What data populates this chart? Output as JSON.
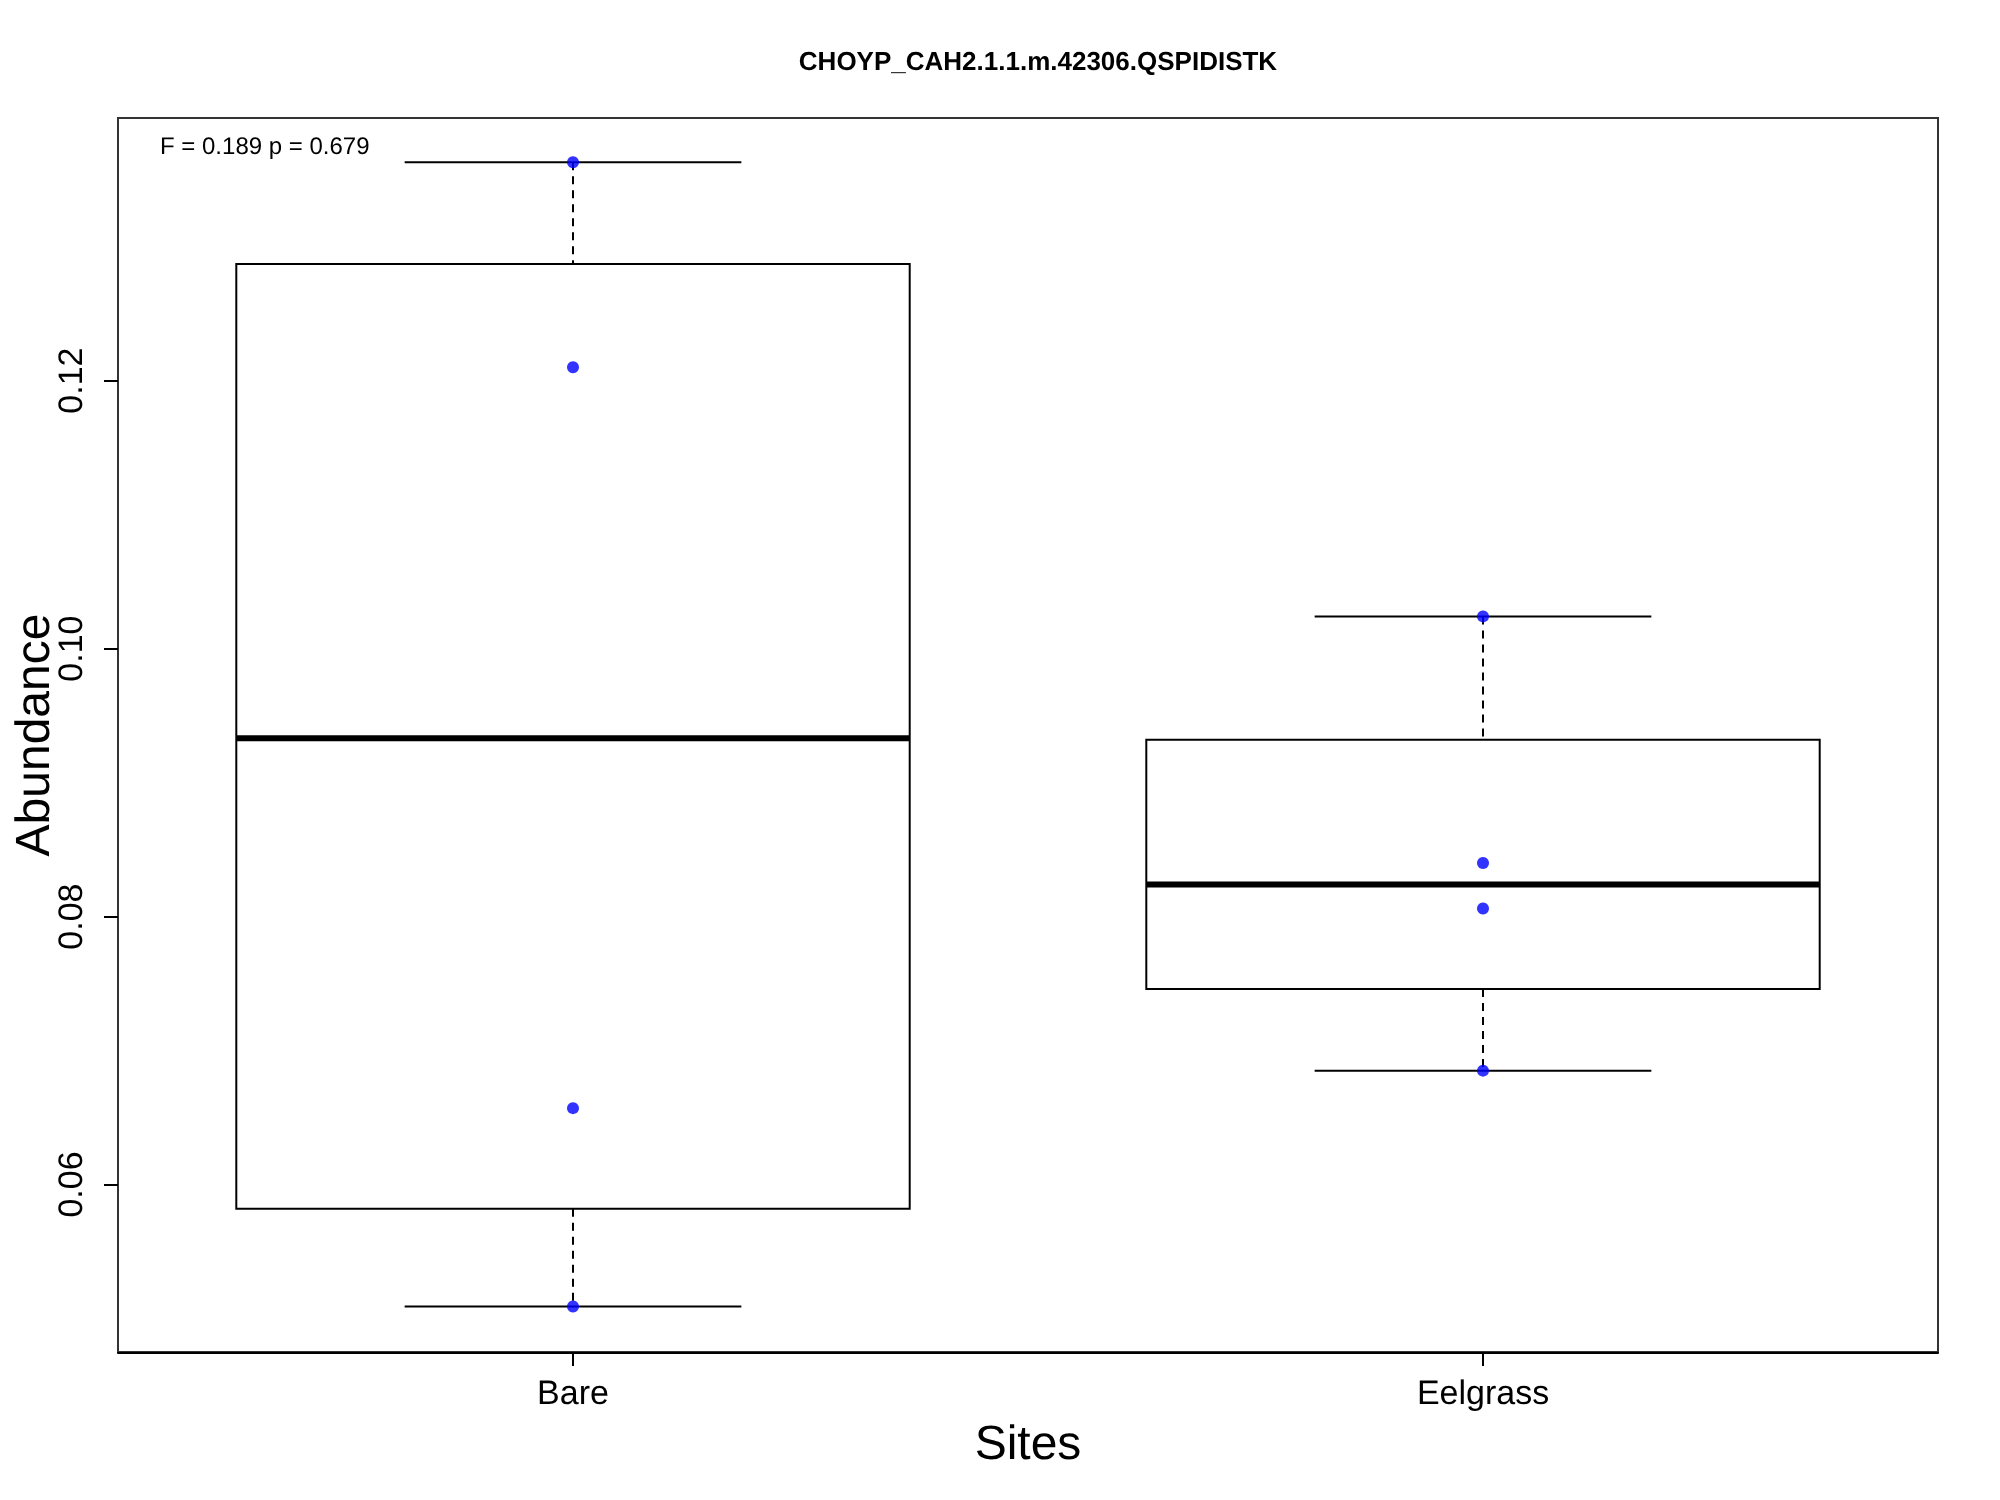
{
  "chart_data": {
    "type": "box",
    "title": "CHOYP_CAH2.1.1.m.42306.QSPIDISTK",
    "xlabel": "Sites",
    "ylabel": "Abundance",
    "annotations": [
      "F = 0.189 p = 0.679"
    ],
    "categories": [
      "Bare",
      "Eelgrass"
    ],
    "color": "#000000",
    "boxes": [
      {
        "low": 0.0509,
        "q1": 0.0582,
        "median": 0.0933,
        "q3": 0.1287,
        "high": 0.1363
      },
      {
        "low": 0.0685,
        "q1": 0.0746,
        "median": 0.0824,
        "q3": 0.0932,
        "high": 0.1024
      }
    ],
    "series": [
      {
        "type": "scatter",
        "color": "#0000ff",
        "x": [
          "Bare",
          "Bare",
          "Bare",
          "Bare",
          "Eelgrass",
          "Eelgrass",
          "Eelgrass",
          "Eelgrass"
        ],
        "values": [
          0.1363,
          0.121,
          0.0657,
          0.0509,
          0.1024,
          0.084,
          0.0806,
          0.0685
        ]
      }
    ],
    "ylim": [
      0.0475,
      0.1396
    ],
    "yticks": [
      0.06,
      0.08,
      {
        "value": 0.1,
        "label": "0.10"
      },
      0.12
    ],
    "marker": "circle",
    "grid": false
  }
}
